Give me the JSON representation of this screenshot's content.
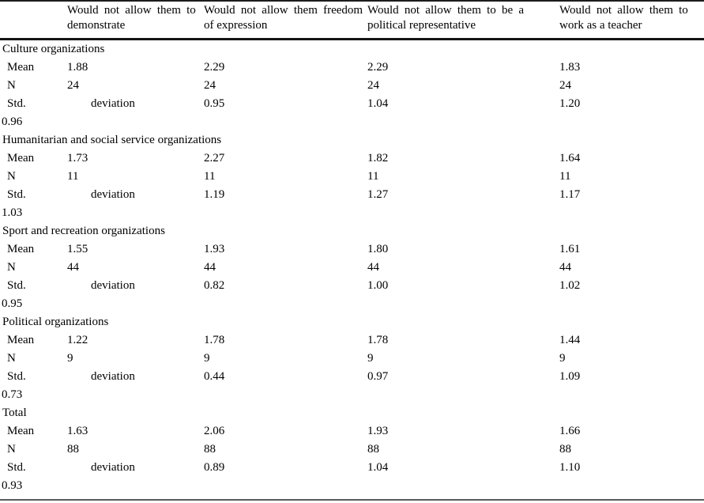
{
  "table": {
    "header": {
      "columns": [
        {
          "lines": [
            "Would not allow them to",
            "demonstrate"
          ]
        },
        {
          "lines": [
            "Would not allow them freedom",
            "of expression"
          ]
        },
        {
          "lines": [
            "Would not allow them to be a",
            "political representative"
          ]
        },
        {
          "lines": [
            "Would not allow them to",
            "work as a teacher"
          ]
        }
      ]
    },
    "row_labels": {
      "mean": "Mean",
      "n": "N",
      "std": "Std.",
      "deviation": "deviation"
    },
    "groups": [
      {
        "name": "Culture organizations",
        "mean": [
          "1.88",
          "2.29",
          "2.29",
          "1.83"
        ],
        "n": [
          "24",
          "24",
          "24",
          "24"
        ],
        "std": [
          "0.95",
          "1.04",
          "1.20"
        ],
        "std_wrap": "0.96"
      },
      {
        "name": "Humanitarian and social service organizations",
        "mean": [
          "1.73",
          "2.27",
          "1.82",
          "1.64"
        ],
        "n": [
          "11",
          "11",
          "11",
          "11"
        ],
        "std": [
          "1.19",
          "1.27",
          "1.17"
        ],
        "std_wrap": "1.03"
      },
      {
        "name": "Sport and recreation organizations",
        "mean": [
          "1.55",
          "1.93",
          "1.80",
          "1.61"
        ],
        "n": [
          "44",
          "44",
          "44",
          "44"
        ],
        "std": [
          "0.82",
          "1.00",
          "1.02"
        ],
        "std_wrap": "0.95"
      },
      {
        "name": "Political organizations",
        "mean": [
          "1.22",
          "1.78",
          "1.78",
          "1.44"
        ],
        "n": [
          "9",
          "9",
          "9",
          "9"
        ],
        "std": [
          "0.44",
          "0.97",
          "1.09"
        ],
        "std_wrap": "0.73"
      },
      {
        "name": "Total",
        "mean": [
          "1.63",
          "2.06",
          "1.93",
          "1.66"
        ],
        "n": [
          "88",
          "88",
          "88",
          "88"
        ],
        "std": [
          "0.89",
          "1.04",
          "1.10"
        ],
        "std_wrap": "0.93"
      }
    ],
    "colors": {
      "text": "#000000",
      "rule_dark": "#141414",
      "rule_bottom": "#5a5a5a",
      "background": "#ffffff"
    }
  }
}
